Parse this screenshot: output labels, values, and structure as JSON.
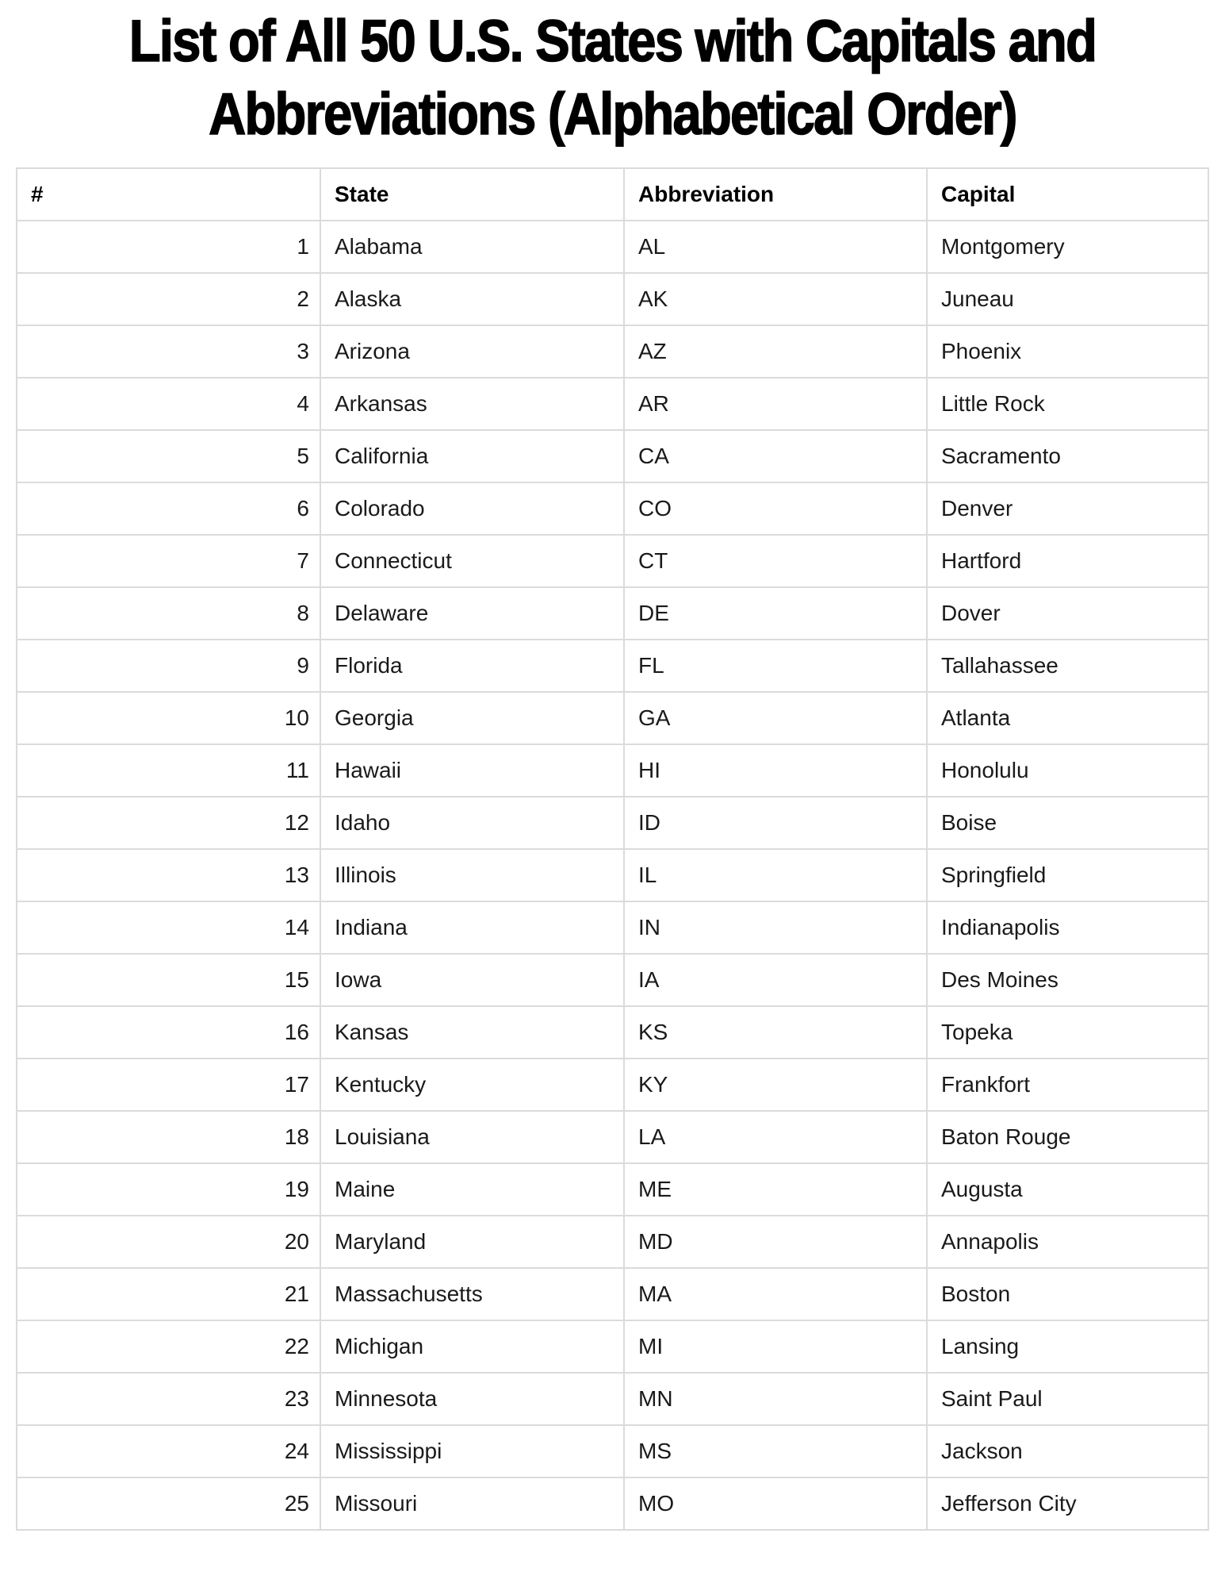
{
  "title": {
    "line1": "List of All 50 U.S. States with Capitals and",
    "line2": "Abbreviations (Alphabetical Order)"
  },
  "colors": {
    "background": "#ffffff",
    "border": "#dbdbdb",
    "text": "#1a1a1a",
    "title": "#000000"
  },
  "table": {
    "columns": [
      "#",
      "State",
      "Abbreviation",
      "Capital"
    ],
    "rows": [
      {
        "num": "1",
        "state": "Alabama",
        "abbr": "AL",
        "capital": "Montgomery"
      },
      {
        "num": "2",
        "state": "Alaska",
        "abbr": "AK",
        "capital": "Juneau"
      },
      {
        "num": "3",
        "state": "Arizona",
        "abbr": "AZ",
        "capital": "Phoenix"
      },
      {
        "num": "4",
        "state": "Arkansas",
        "abbr": "AR",
        "capital": "Little Rock"
      },
      {
        "num": "5",
        "state": "California",
        "abbr": "CA",
        "capital": "Sacramento"
      },
      {
        "num": "6",
        "state": "Colorado",
        "abbr": "CO",
        "capital": "Denver"
      },
      {
        "num": "7",
        "state": "Connecticut",
        "abbr": "CT",
        "capital": "Hartford"
      },
      {
        "num": "8",
        "state": "Delaware",
        "abbr": "DE",
        "capital": "Dover"
      },
      {
        "num": "9",
        "state": "Florida",
        "abbr": "FL",
        "capital": "Tallahassee"
      },
      {
        "num": "10",
        "state": "Georgia",
        "abbr": "GA",
        "capital": "Atlanta"
      },
      {
        "num": "11",
        "state": "Hawaii",
        "abbr": "HI",
        "capital": "Honolulu"
      },
      {
        "num": "12",
        "state": "Idaho",
        "abbr": "ID",
        "capital": "Boise"
      },
      {
        "num": "13",
        "state": "Illinois",
        "abbr": "IL",
        "capital": "Springfield"
      },
      {
        "num": "14",
        "state": "Indiana",
        "abbr": "IN",
        "capital": "Indianapolis"
      },
      {
        "num": "15",
        "state": "Iowa",
        "abbr": "IA",
        "capital": "Des Moines"
      },
      {
        "num": "16",
        "state": "Kansas",
        "abbr": "KS",
        "capital": "Topeka"
      },
      {
        "num": "17",
        "state": "Kentucky",
        "abbr": "KY",
        "capital": "Frankfort"
      },
      {
        "num": "18",
        "state": "Louisiana",
        "abbr": "LA",
        "capital": "Baton Rouge"
      },
      {
        "num": "19",
        "state": "Maine",
        "abbr": "ME",
        "capital": "Augusta"
      },
      {
        "num": "20",
        "state": "Maryland",
        "abbr": "MD",
        "capital": "Annapolis"
      },
      {
        "num": "21",
        "state": "Massachusetts",
        "abbr": "MA",
        "capital": "Boston"
      },
      {
        "num": "22",
        "state": "Michigan",
        "abbr": "MI",
        "capital": "Lansing"
      },
      {
        "num": "23",
        "state": "Minnesota",
        "abbr": "MN",
        "capital": "Saint Paul"
      },
      {
        "num": "24",
        "state": "Mississippi",
        "abbr": "MS",
        "capital": "Jackson"
      },
      {
        "num": "25",
        "state": "Missouri",
        "abbr": "MO",
        "capital": "Jefferson City"
      }
    ]
  }
}
